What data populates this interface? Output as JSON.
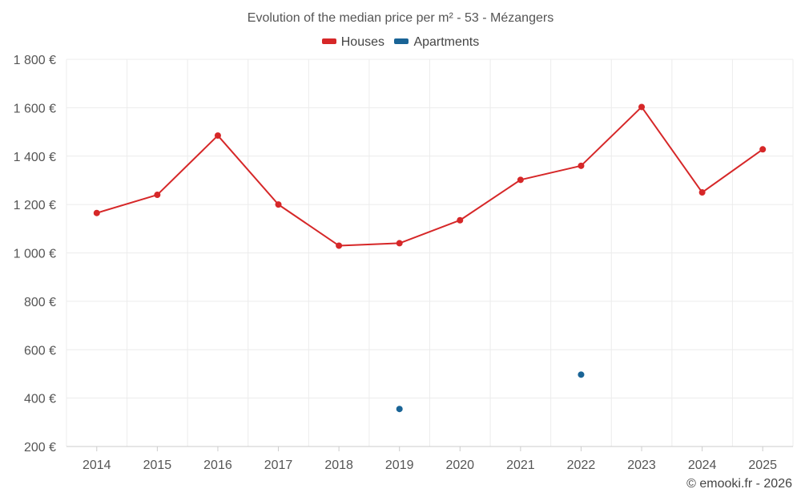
{
  "chart_data": {
    "type": "line",
    "title": "Evolution of the median price per m² - 53 - Mézangers",
    "categories": [
      "2014",
      "2015",
      "2016",
      "2017",
      "2018",
      "2019",
      "2020",
      "2021",
      "2022",
      "2023",
      "2024",
      "2025"
    ],
    "y_ticks": [
      "200 €",
      "400 €",
      "600 €",
      "800 €",
      "1 000 €",
      "1 200 €",
      "1 400 €",
      "1 600 €",
      "1 800 €"
    ],
    "y_tick_values": [
      200,
      400,
      600,
      800,
      1000,
      1200,
      1400,
      1600,
      1800
    ],
    "ylim": [
      200,
      1800
    ],
    "grid": true,
    "legend_position": "top-center",
    "series": [
      {
        "name": "Houses",
        "color": "#d62728",
        "values": [
          1165,
          1240,
          1485,
          1200,
          1030,
          1040,
          1135,
          1302,
          1360,
          1603,
          1250,
          1428
        ]
      },
      {
        "name": "Apartments",
        "color": "#1a6496",
        "values": [
          null,
          null,
          null,
          null,
          null,
          355,
          null,
          null,
          497,
          null,
          null,
          null
        ]
      }
    ]
  },
  "copyright": "© emooki.fr - 2026"
}
